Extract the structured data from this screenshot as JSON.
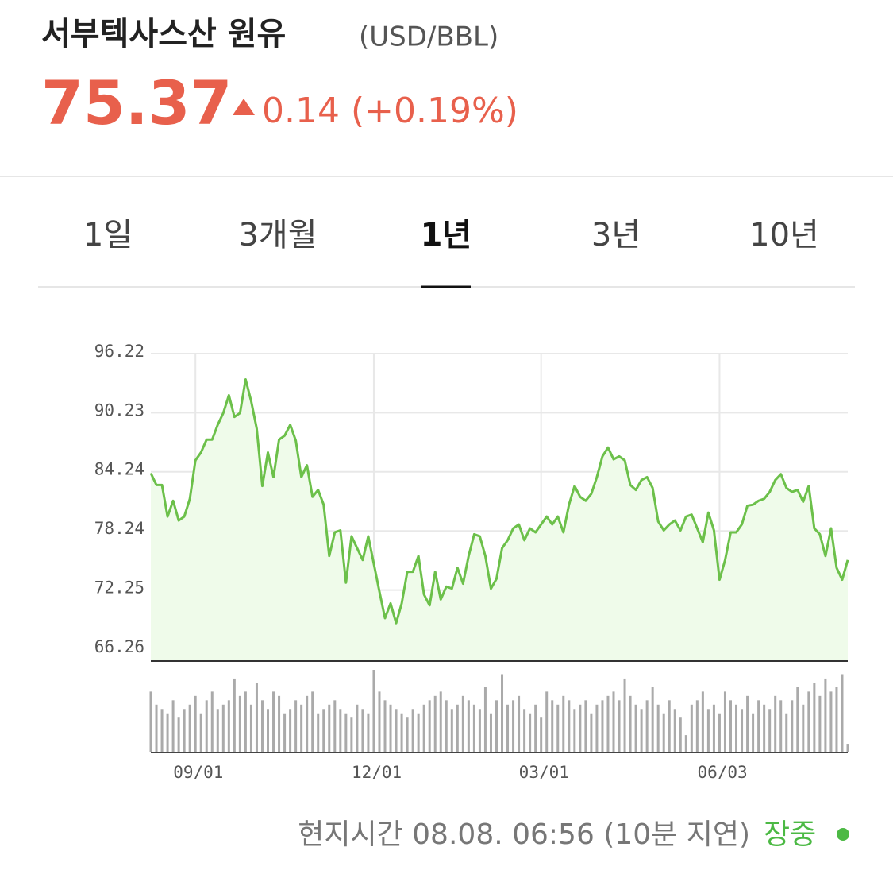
{
  "header": {
    "title": "서부텍사스산 원유",
    "unit": "(USD/BBL)",
    "price": "75.37",
    "change": "0.14",
    "change_pct": "(+0.19%)"
  },
  "tabs": {
    "items": [
      "1일",
      "3개월",
      "1년",
      "3년",
      "10년"
    ],
    "selected": 2
  },
  "chart_data": {
    "type": "line",
    "color": "#6cc04a",
    "fill": "#effbea",
    "grid": true,
    "ylim": [
      65.05,
      96.22
    ],
    "yticks": [
      96.22,
      90.23,
      84.24,
      78.24,
      72.25,
      66.26
    ],
    "categories": [
      null,
      null,
      null,
      null,
      null,
      null,
      null,
      null,
      "09/01",
      null,
      null,
      null,
      null,
      null,
      null,
      null,
      null,
      null,
      null,
      null,
      null,
      null,
      null,
      null,
      null,
      null,
      null,
      null,
      null,
      null,
      null,
      null,
      null,
      null,
      null,
      null,
      null,
      null,
      null,
      null,
      "12/01",
      null,
      null,
      null,
      null,
      null,
      null,
      null,
      null,
      null,
      null,
      null,
      null,
      null,
      null,
      null,
      null,
      null,
      null,
      null,
      null,
      null,
      null,
      null,
      null,
      null,
      null,
      null,
      null,
      null,
      "03/01",
      null,
      null,
      null,
      null,
      null,
      null,
      null,
      null,
      null,
      null,
      null,
      null,
      null,
      null,
      null,
      null,
      null,
      null,
      null,
      null,
      null,
      null,
      null,
      null,
      null,
      null,
      null,
      null,
      null,
      null,
      null,
      "06/03",
      null,
      null,
      null,
      null,
      null,
      null,
      null,
      null,
      null,
      null,
      null,
      null,
      null,
      null,
      null,
      null,
      null,
      null,
      null,
      null,
      null,
      null,
      null
    ],
    "values": [
      84.1,
      82.9,
      82.9,
      79.7,
      81.3,
      79.3,
      79.7,
      81.5,
      85.4,
      86.2,
      87.5,
      87.5,
      89.0,
      90.2,
      92.0,
      89.8,
      90.2,
      93.6,
      91.4,
      88.6,
      82.8,
      86.2,
      83.7,
      87.5,
      87.9,
      89.0,
      87.4,
      83.7,
      84.9,
      81.7,
      82.4,
      80.9,
      75.7,
      78.1,
      78.3,
      73.0,
      77.7,
      76.5,
      75.3,
      77.7,
      74.9,
      72.1,
      69.4,
      70.9,
      68.9,
      70.9,
      74.1,
      74.1,
      75.7,
      71.8,
      70.7,
      74.1,
      71.3,
      72.6,
      72.4,
      74.5,
      72.9,
      75.7,
      77.9,
      77.7,
      75.7,
      72.4,
      73.4,
      76.5,
      77.3,
      78.5,
      78.9,
      77.3,
      78.5,
      78.1,
      78.9,
      79.7,
      78.9,
      79.7,
      78.1,
      80.9,
      82.8,
      81.7,
      81.3,
      82.0,
      83.7,
      85.8,
      86.7,
      85.5,
      85.8,
      85.4,
      82.9,
      82.4,
      83.4,
      83.7,
      82.6,
      79.2,
      78.3,
      78.9,
      79.3,
      78.3,
      79.7,
      79.9,
      78.5,
      77.1,
      80.1,
      78.3,
      73.3,
      75.3,
      78.1,
      78.1,
      78.9,
      80.8,
      80.9,
      81.3,
      81.5,
      82.2,
      83.4,
      84.0,
      82.6,
      82.2,
      82.4,
      81.2,
      82.8,
      78.5,
      77.9,
      75.7,
      78.5,
      74.5,
      73.3,
      75.3
    ],
    "volume": [
      70,
      55,
      50,
      45,
      60,
      40,
      50,
      55,
      65,
      45,
      60,
      70,
      50,
      55,
      60,
      85,
      65,
      70,
      55,
      80,
      60,
      50,
      70,
      65,
      45,
      50,
      60,
      55,
      65,
      70,
      45,
      50,
      55,
      60,
      50,
      45,
      40,
      55,
      50,
      45,
      95,
      70,
      60,
      55,
      50,
      45,
      40,
      50,
      45,
      55,
      60,
      65,
      70,
      60,
      50,
      55,
      65,
      60,
      55,
      50,
      75,
      45,
      60,
      90,
      55,
      60,
      65,
      50,
      45,
      55,
      40,
      70,
      60,
      55,
      65,
      60,
      50,
      55,
      60,
      45,
      55,
      60,
      65,
      70,
      60,
      85,
      65,
      55,
      50,
      60,
      75,
      55,
      45,
      60,
      50,
      40,
      20,
      55,
      60,
      70,
      50,
      55,
      45,
      70,
      60,
      55,
      50,
      65,
      45,
      60,
      55,
      50,
      65,
      60,
      45,
      60,
      75,
      55,
      70,
      80,
      65,
      85,
      70,
      75,
      90,
      10
    ]
  },
  "footer": {
    "time": "현지시간 08.08. 06:56 (10분 지연)",
    "status": "장중",
    "status_color": "#4cb944"
  }
}
